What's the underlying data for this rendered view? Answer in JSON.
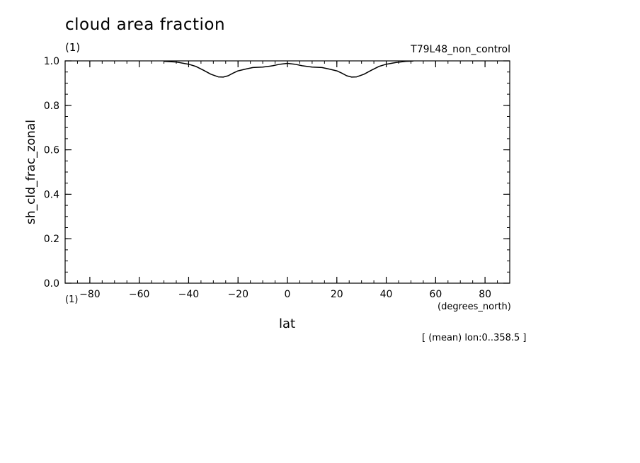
{
  "header": {
    "title": "cloud area fraction",
    "units": "(1)",
    "run_name": "T79L48_non_control"
  },
  "axes": {
    "x_units_left": "(1)",
    "x_units": "(degrees_north)",
    "x_label": "lat",
    "y_label": "sh_cld_frac_zonal"
  },
  "footer": {
    "note": "[ (mean) lon:0..358.5 ]"
  },
  "chart_data": {
    "type": "line",
    "title": "cloud area fraction",
    "xlabel": "lat",
    "ylabel": "sh_cld_frac_zonal",
    "xlim": [
      -90,
      90
    ],
    "ylim": [
      0,
      1
    ],
    "xticks": [
      -80,
      -60,
      -40,
      -20,
      0,
      20,
      40,
      60,
      80
    ],
    "xtick_labels": [
      "−80",
      "−60",
      "−40",
      "−20",
      "0",
      "20",
      "40",
      "60",
      "80"
    ],
    "yticks": [
      0,
      0.2,
      0.4,
      0.6,
      0.8,
      1.0
    ],
    "ytick_labels": [
      "0.0",
      "0.2",
      "0.4",
      "0.6",
      "0.8",
      "1.0"
    ],
    "grid": false,
    "series": [
      {
        "color": "#000000",
        "x": [
          -50,
          -45,
          -40,
          -37,
          -34,
          -31,
          -28,
          -26,
          -24,
          -22,
          -20,
          -17,
          -14,
          -10,
          -6,
          -3,
          0,
          3,
          6,
          10,
          14,
          17,
          20,
          22,
          24,
          26,
          28,
          31,
          34,
          37,
          40,
          44,
          48,
          51
        ],
        "y": [
          0.998,
          0.995,
          0.985,
          0.975,
          0.958,
          0.94,
          0.928,
          0.927,
          0.933,
          0.945,
          0.955,
          0.963,
          0.97,
          0.972,
          0.978,
          0.985,
          0.989,
          0.985,
          0.978,
          0.972,
          0.97,
          0.963,
          0.955,
          0.945,
          0.933,
          0.927,
          0.928,
          0.94,
          0.958,
          0.975,
          0.985,
          0.993,
          0.998,
          0.999
        ]
      }
    ]
  }
}
